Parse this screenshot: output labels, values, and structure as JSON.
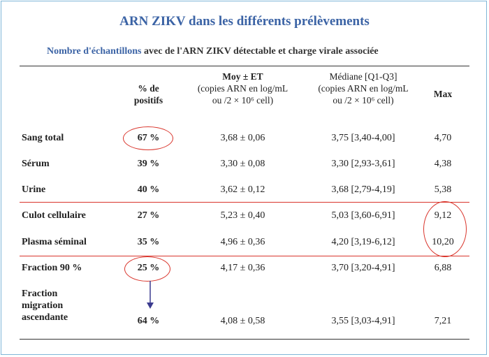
{
  "title": "ARN ZIKV dans les différents prélèvements",
  "subtitle_highlight": "Nombre d'échantillons",
  "subtitle_rest": " avec de l'ARN ZIKV détectable et charge virale associée",
  "headers": {
    "positifs_line1": "% de",
    "positifs_line2": "positifs",
    "moy_title": "Moy ± ET",
    "moy_line2": "(copies ARN en log/mL",
    "moy_line3": "ou /2 × 10⁶ cell)",
    "med_title": "Médiane [Q1-Q3]",
    "med_line2": "(copies ARN en log/mL",
    "med_line3": "ou /2 × 10⁶ cell)",
    "max": "Max"
  },
  "rows": [
    {
      "label": "Sang total",
      "positifs": "67 %",
      "moy": "3,68 ± 0,06",
      "med": "3,75 [3,40-4,00]",
      "max": "4,70"
    },
    {
      "label": "Sérum",
      "positifs": "39 %",
      "moy": "3,30 ± 0,08",
      "med": "3,30 [2,93-3,61]",
      "max": "4,38"
    },
    {
      "label": "Urine",
      "positifs": "40 %",
      "moy": "3,62 ± 0,12",
      "med": "3,68 [2,79-4,19]",
      "max": "5,38"
    },
    {
      "label": "Culot cellulaire",
      "positifs": "27 %",
      "moy": "5,23 ± 0,40",
      "med": "5,03 [3,60-6,91]",
      "max": "9,12"
    },
    {
      "label": "Plasma séminal",
      "positifs": "35 %",
      "moy": "4,96 ± 0,36",
      "med": "4,20 [3,19-6,12]",
      "max": "10,20"
    },
    {
      "label": "Fraction 90 %",
      "positifs": "25 %",
      "moy": "4,17 ± 0,36",
      "med": "3,70 [3,20-4,91]",
      "max": "6,88"
    },
    {
      "label_line1": "Fraction",
      "label_line2": "migration",
      "label_line3": "ascendante",
      "positifs": "64 %",
      "moy": "4,08 ± 0,58",
      "med": "3,55 [3,03-4,91]",
      "max": "7,21"
    }
  ],
  "colors": {
    "title": "#3b63a5",
    "highlight_ellipse": "#d9342b",
    "arrow": "#3b3b8f",
    "frame": "#7fb6d8"
  }
}
